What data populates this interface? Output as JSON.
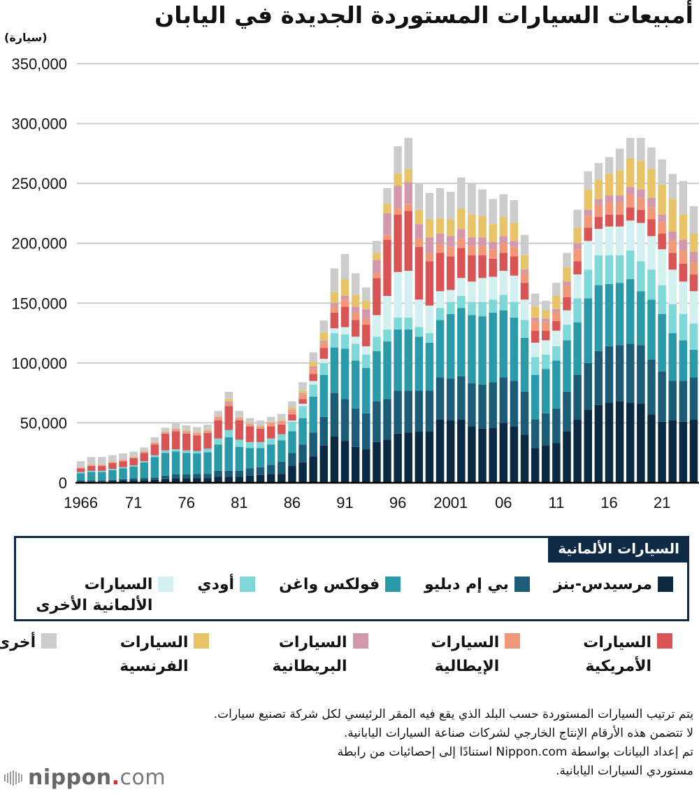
{
  "title": "أمبيعات السيارات المستوردة الجديدة في اليابان",
  "unit_label": "(سيارة)",
  "chart_data": {
    "type": "bar",
    "stacked": true,
    "title": "أمبيعات السيارات المستوردة الجديدة في اليابان",
    "ylabel": "(سيارة)",
    "xlabel": "",
    "ylim": [
      0,
      350000
    ],
    "yticks": [
      0,
      50000,
      100000,
      150000,
      200000,
      250000,
      300000,
      350000
    ],
    "ytick_labels": [
      "0",
      "50,000",
      "100,000",
      "150,000",
      "200,000",
      "250,000",
      "300,000",
      "350,000"
    ],
    "xtick_years": [
      1966,
      1971,
      1976,
      1981,
      1986,
      1991,
      1996,
      2001,
      2006,
      2011,
      2016,
      2021
    ],
    "xtick_labels": [
      "1966",
      "71",
      "76",
      "81",
      "86",
      "91",
      "96",
      "2001",
      "06",
      "11",
      "16",
      "21"
    ],
    "grid": true,
    "x": [
      1966,
      1967,
      1968,
      1969,
      1970,
      1971,
      1972,
      1973,
      1974,
      1975,
      1976,
      1977,
      1978,
      1979,
      1980,
      1981,
      1982,
      1983,
      1984,
      1985,
      1986,
      1987,
      1988,
      1989,
      1990,
      1991,
      1992,
      1993,
      1994,
      1995,
      1996,
      1997,
      1998,
      1999,
      2000,
      2001,
      2002,
      2003,
      2004,
      2005,
      2006,
      2007,
      2008,
      2009,
      2010,
      2011,
      2012,
      2013,
      2014,
      2015,
      2016,
      2017,
      2018,
      2019,
      2020,
      2021,
      2022,
      2023,
      2024
    ],
    "series": [
      {
        "name": "مرسيدس-بنز",
        "group": "German",
        "color": "#0b2a42",
        "values": [
          1000,
          1000,
          1000,
          1500,
          2000,
          2000,
          2000,
          2500,
          3000,
          3500,
          3500,
          4000,
          4000,
          5000,
          5000,
          5000,
          6000,
          6500,
          7000,
          7500,
          14000,
          17000,
          22000,
          31000,
          39000,
          35000,
          30000,
          28000,
          34000,
          36000,
          41000,
          42000,
          43000,
          43000,
          53000,
          52000,
          53000,
          47000,
          45000,
          46000,
          50000,
          47000,
          40000,
          29000,
          31000,
          33000,
          43000,
          53000,
          61000,
          65000,
          67000,
          68000,
          67000,
          66000,
          57000,
          51000,
          52000,
          51000,
          53000
        ]
      },
      {
        "name": "بي إم دبليو",
        "group": "German",
        "color": "#1b5b75",
        "values": [
          1000,
          1000,
          1000,
          1000,
          1000,
          1500,
          2000,
          2000,
          3000,
          3500,
          3500,
          3500,
          3500,
          5000,
          5000,
          5000,
          6000,
          6500,
          8000,
          10000,
          11000,
          15000,
          20000,
          24000,
          36000,
          35000,
          32000,
          30000,
          34000,
          34000,
          36000,
          35000,
          34000,
          34000,
          35000,
          35000,
          36000,
          36000,
          37000,
          38000,
          38000,
          38000,
          36000,
          24000,
          27000,
          29000,
          33000,
          37000,
          39000,
          45000,
          47000,
          47000,
          49000,
          49000,
          46000,
          42000,
          33000,
          34000,
          35000
        ]
      },
      {
        "name": "فولكس واغن",
        "group": "German",
        "color": "#2a9aa8",
        "values": [
          6000,
          7000,
          7000,
          8000,
          9000,
          10000,
          13000,
          17000,
          19000,
          19000,
          18000,
          17000,
          18000,
          22000,
          28000,
          20000,
          17000,
          16000,
          17000,
          18000,
          18000,
          22000,
          30000,
          35000,
          38000,
          42000,
          40000,
          38000,
          42000,
          48000,
          51000,
          51000,
          45000,
          40000,
          48000,
          54000,
          57000,
          57000,
          57000,
          58000,
          56000,
          53000,
          45000,
          37000,
          37000,
          40000,
          43000,
          44000,
          54000,
          55000,
          52000,
          52000,
          54000,
          45000,
          50000,
          48000,
          40000,
          34000,
          23000
        ]
      },
      {
        "name": "أودي",
        "group": "German",
        "color": "#7fd8d8",
        "values": [
          1000,
          1000,
          1000,
          1000,
          1000,
          1000,
          1000,
          1500,
          2000,
          2000,
          2000,
          2000,
          3000,
          5000,
          6000,
          6000,
          5000,
          5000,
          5000,
          5000,
          8000,
          10000,
          10000,
          10000,
          12000,
          12000,
          14000,
          11000,
          12000,
          10000,
          10000,
          10000,
          8000,
          8000,
          10000,
          10000,
          10000,
          11000,
          12000,
          11000,
          13000,
          13000,
          15000,
          15000,
          12000,
          12000,
          13000,
          20000,
          24000,
          25000,
          24000,
          23000,
          24000,
          25000,
          25000,
          24000,
          24000,
          22000,
          22000
        ]
      },
      {
        "name": "السيارات الألمانية الأخرى",
        "group": "German",
        "color": "#d2f0f0",
        "values": [
          0,
          0,
          0,
          0,
          0,
          0,
          0,
          0,
          0,
          0,
          0,
          0,
          0,
          0,
          0,
          0,
          0,
          0,
          0,
          0,
          1000,
          2000,
          3000,
          3500,
          4000,
          6000,
          6000,
          7000,
          18000,
          28000,
          38000,
          39000,
          23000,
          23000,
          14000,
          10000,
          15000,
          17000,
          20000,
          19000,
          20000,
          22000,
          17000,
          12000,
          12000,
          13000,
          12000,
          20000,
          24000,
          22000,
          24000,
          24000,
          25000,
          32000,
          28000,
          30000,
          29000,
          27000,
          27000
        ]
      },
      {
        "name": "السيارات الأمريكية",
        "group": "Other",
        "color": "#d95555",
        "values": [
          3000,
          4000,
          4000,
          5000,
          5000,
          6000,
          7000,
          9000,
          14000,
          15000,
          14000,
          13000,
          13000,
          15000,
          20000,
          16000,
          13000,
          11000,
          10000,
          8000,
          5000,
          4000,
          6000,
          9000,
          13000,
          17000,
          14000,
          18000,
          31000,
          47000,
          48000,
          50000,
          44000,
          37000,
          32000,
          28000,
          25000,
          22000,
          19000,
          15000,
          15000,
          16000,
          14000,
          10000,
          8000,
          8000,
          11000,
          11000,
          11000,
          10000,
          10000,
          10000,
          11000,
          11000,
          14000,
          13000,
          14000,
          15000,
          14000
        ]
      },
      {
        "name": "السيارات الإيطالية",
        "group": "Other",
        "color": "#f09878",
        "values": [
          0,
          500,
          500,
          500,
          500,
          500,
          500,
          1000,
          1000,
          1000,
          1000,
          1000,
          1000,
          2000,
          2000,
          1000,
          1000,
          1000,
          2000,
          2000,
          3000,
          4000,
          4000,
          4000,
          5000,
          6000,
          6000,
          5000,
          4000,
          4000,
          5000,
          6000,
          7000,
          7000,
          7000,
          8000,
          8000,
          8000,
          8000,
          8000,
          8000,
          8000,
          8000,
          8000,
          7000,
          7000,
          10000,
          10000,
          10000,
          10000,
          10000,
          10000,
          11000,
          10000,
          10000,
          10000,
          11000,
          11000,
          10000
        ]
      },
      {
        "name": "السيارات البريطانية",
        "group": "Other",
        "color": "#d498ad",
        "values": [
          500,
          500,
          500,
          500,
          500,
          500,
          500,
          500,
          500,
          1000,
          1000,
          1000,
          1000,
          1000,
          2000,
          1000,
          1000,
          1000,
          1000,
          1000,
          1000,
          1000,
          2000,
          2000,
          3000,
          3000,
          5000,
          8000,
          11000,
          18000,
          19000,
          18000,
          12000,
          13000,
          9000,
          9000,
          8000,
          7000,
          7000,
          6000,
          6000,
          5000,
          3000,
          3000,
          3000,
          3000,
          3000,
          5000,
          5000,
          5000,
          6000,
          6000,
          6000,
          7000,
          8000,
          6000,
          7000,
          9000,
          9000
        ]
      },
      {
        "name": "السيارات الفرنسية",
        "group": "Other",
        "color": "#e8c469",
        "values": [
          500,
          500,
          500,
          500,
          500,
          500,
          500,
          500,
          500,
          500,
          1000,
          1000,
          1000,
          1000,
          2000,
          1000,
          1000,
          1000,
          1000,
          1000,
          2000,
          2000,
          4000,
          7000,
          9000,
          14000,
          10000,
          7000,
          6000,
          8000,
          10000,
          11000,
          12000,
          15000,
          13000,
          14000,
          17000,
          19000,
          18000,
          15000,
          16000,
          15000,
          12000,
          9000,
          7000,
          11000,
          12000,
          13000,
          17000,
          16000,
          18000,
          21000,
          24000,
          24000,
          24000,
          25000,
          27000,
          21000,
          15000
        ]
      },
      {
        "name": "أخرى",
        "group": "Other",
        "color": "#cccccc",
        "values": [
          5000,
          6000,
          6000,
          5000,
          5000,
          4000,
          3000,
          4000,
          3000,
          4000,
          4000,
          4000,
          4000,
          4000,
          6000,
          5000,
          4000,
          4000,
          4000,
          5000,
          5000,
          7000,
          8000,
          10000,
          20000,
          21000,
          18000,
          11000,
          10000,
          13000,
          23000,
          26000,
          22000,
          22000,
          25000,
          23000,
          26000,
          26000,
          22000,
          21000,
          19000,
          19000,
          17000,
          11000,
          8000,
          11000,
          12000,
          15000,
          15000,
          14000,
          14000,
          18000,
          17000,
          19000,
          18000,
          21000,
          21000,
          28000,
          23000
        ]
      }
    ]
  },
  "legend": {
    "german_header": "السيارات الألمانية",
    "german_items": [
      {
        "label": "مرسيدس-بنز",
        "color": "#0b2a42"
      },
      {
        "label": "بي إم دبليو",
        "color": "#1b5b75"
      },
      {
        "label": "فولكس واغن",
        "color": "#2a9aa8"
      },
      {
        "label": "أودي",
        "color": "#7fd8d8"
      },
      {
        "label": "السيارات الألمانية الأخرى",
        "line1": "السيارات",
        "line2": "الألمانية الأخرى",
        "color": "#d2f0f0"
      }
    ],
    "other_items": [
      {
        "line1": "السيارات",
        "line2": "الأمريكية",
        "color": "#d95555"
      },
      {
        "line1": "السيارات",
        "line2": "الإيطالية",
        "color": "#f09878"
      },
      {
        "line1": "السيارات",
        "line2": "البريطانية",
        "color": "#d498ad"
      },
      {
        "line1": "السيارات",
        "line2": "الفرنسية",
        "color": "#e8c469"
      },
      {
        "line1": "أخرى",
        "line2": "",
        "color": "#cccccc"
      }
    ]
  },
  "notes": [
    "يتم ترتيب السيارات المستوردة حسب البلد الذي يقع فيه المقر الرئيسي لكل شركة تصنيع سيارات.",
    "لا تتضمن هذه الأرقام الإنتاج الخارجي لشركات صناعة السيارات اليابانية.",
    "تم إعداد البيانات بواسطة Nippon.com استنادًا إلى إحصائيات من رابطة",
    "مستوردي السيارات اليابانية."
  ],
  "logo": {
    "name": "nippon",
    "dot": ".",
    "tld": "com"
  }
}
